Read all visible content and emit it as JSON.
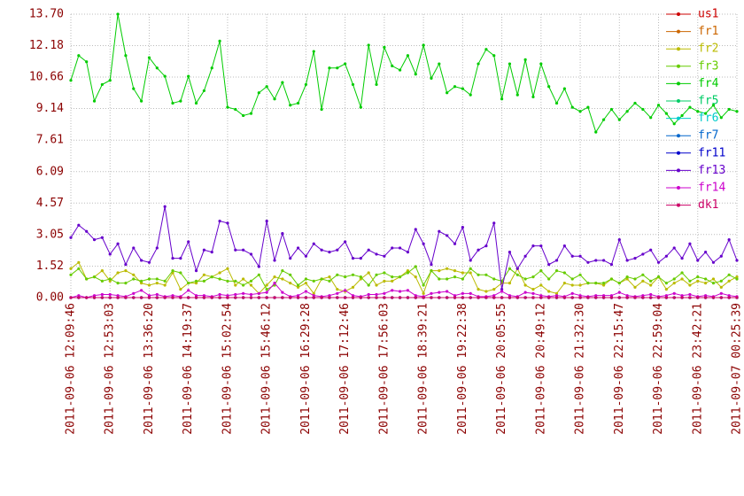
{
  "chart_data": {
    "type": "line",
    "categories": [
      "2011-09-06 12:09:46",
      null,
      null,
      null,
      null,
      "2011-09-06 12:53:03",
      null,
      null,
      null,
      null,
      "2011-09-06 13:36:20",
      null,
      null,
      null,
      null,
      "2011-09-06 14:19:37",
      null,
      null,
      null,
      null,
      "2011-09-06 15:02:54",
      null,
      null,
      null,
      null,
      "2011-09-06 15:46:12",
      null,
      null,
      null,
      null,
      "2011-09-06 16:29:28",
      null,
      null,
      null,
      null,
      "2011-09-06 17:12:46",
      null,
      null,
      null,
      null,
      "2011-09-06 17:56:03",
      null,
      null,
      null,
      null,
      "2011-09-06 18:39:21",
      null,
      null,
      null,
      null,
      "2011-09-06 19:22:38",
      null,
      null,
      null,
      null,
      "2011-09-06 20:05:55",
      null,
      null,
      null,
      null,
      "2011-09-06 20:49:12",
      null,
      null,
      null,
      null,
      "2011-09-06 21:32:30",
      null,
      null,
      null,
      null,
      "2011-09-06 22:15:47",
      null,
      null,
      null,
      null,
      "2011-09-06 22:59:04",
      null,
      null,
      null,
      null,
      "2011-09-06 23:42:21",
      null,
      null,
      null,
      null,
      "2011-09-07 00:25:39"
    ],
    "ylim": [
      0,
      13.7
    ],
    "yticks": [
      {
        "value": 0,
        "label": "0.00"
      },
      1.52,
      3.05,
      4.57,
      6.09,
      7.61,
      9.14,
      10.66,
      12.18,
      {
        "value": 13.7,
        "label": "13.70"
      }
    ],
    "grid": true,
    "legend": "right",
    "series": [
      {
        "name": "us1",
        "color": "#cc0000",
        "values": [
          0,
          0,
          0,
          0,
          0,
          0,
          0,
          0,
          0,
          0,
          0,
          0,
          0,
          0,
          0,
          0,
          0,
          0,
          0,
          0,
          0,
          0,
          0,
          0,
          0,
          0,
          0,
          0,
          0,
          0,
          0,
          0,
          0,
          0,
          0,
          0,
          0,
          0,
          0,
          0,
          0,
          0,
          0,
          0,
          0,
          0,
          0,
          0,
          0,
          0,
          0,
          0,
          0,
          0,
          0,
          0,
          0,
          0,
          0,
          0,
          0,
          0,
          0,
          0,
          0,
          0,
          0,
          0,
          0,
          0,
          0,
          0,
          0,
          0,
          0,
          0,
          0,
          0,
          0,
          0,
          0,
          0,
          0,
          0,
          0,
          0
        ]
      },
      {
        "name": "fr1",
        "color": "#cc6600",
        "values": [
          0,
          0,
          0,
          0,
          0,
          0,
          0,
          0,
          0,
          0,
          0,
          0,
          0,
          0,
          0,
          0,
          0,
          0,
          0,
          0,
          0,
          0,
          0,
          0,
          0,
          0,
          0,
          0,
          0,
          0,
          0,
          0,
          0,
          0,
          0,
          0,
          0,
          0,
          0,
          0,
          0,
          0,
          0,
          0,
          0,
          0,
          0,
          0,
          0,
          0,
          0,
          0,
          0,
          0,
          0,
          0,
          0,
          0,
          0,
          0,
          0,
          0,
          0,
          0,
          0,
          0,
          0,
          0,
          0,
          0,
          0,
          0,
          0,
          0,
          0,
          0,
          0,
          0,
          0,
          0,
          0,
          0,
          0,
          0,
          0,
          0
        ]
      },
      {
        "name": "fr2",
        "color": "#bbbb00",
        "values": [
          1.4,
          1.7,
          0.9,
          1.0,
          1.3,
          0.8,
          1.2,
          1.3,
          1.1,
          0.7,
          0.6,
          0.7,
          0.6,
          1.2,
          0.4,
          0.7,
          0.7,
          1.1,
          1.0,
          1.2,
          1.4,
          0.6,
          0.9,
          0.6,
          0.2,
          0.6,
          1.0,
          0.9,
          0.7,
          0.5,
          0.7,
          0.2,
          0.9,
          1.0,
          0.4,
          0.3,
          0.5,
          0.9,
          1.2,
          0.6,
          0.8,
          0.8,
          1.0,
          1.3,
          1.0,
          0.2,
          1.3,
          1.3,
          1.4,
          1.3,
          1.2,
          1.2,
          0.4,
          0.3,
          0.4,
          0.7,
          0.7,
          1.4,
          0.6,
          0.4,
          0.6,
          0.3,
          0.2,
          0.7,
          0.6,
          0.6,
          0.7,
          0.7,
          0.6,
          0.9,
          0.7,
          0.9,
          0.5,
          0.8,
          0.6,
          1.0,
          0.4,
          0.7,
          0.9,
          0.6,
          0.8,
          0.7,
          0.9,
          0.5,
          0.8,
          1.0
        ]
      },
      {
        "name": "fr3",
        "color": "#66cc00",
        "values": [
          1.1,
          1.4,
          0.9,
          1.0,
          0.8,
          0.9,
          0.7,
          0.7,
          0.9,
          0.8,
          0.9,
          0.9,
          0.8,
          1.3,
          1.2,
          0.7,
          0.8,
          0.8,
          1.0,
          0.9,
          0.8,
          0.8,
          0.6,
          0.8,
          1.1,
          0.4,
          0.6,
          1.3,
          1.1,
          0.6,
          0.9,
          0.8,
          0.9,
          0.8,
          1.1,
          1.0,
          1.1,
          1.0,
          0.6,
          1.1,
          1.2,
          1.0,
          1.0,
          1.2,
          1.5,
          0.6,
          1.3,
          0.9,
          0.9,
          1.0,
          0.9,
          1.4,
          1.1,
          1.1,
          0.9,
          0.8,
          1.4,
          1.1,
          0.9,
          1.0,
          1.3,
          0.9,
          1.3,
          1.2,
          0.9,
          1.1,
          0.7,
          0.7,
          0.7,
          0.9,
          0.7,
          1.0,
          0.9,
          1.1,
          0.8,
          1.0,
          0.7,
          0.9,
          1.2,
          0.8,
          1.0,
          0.9,
          0.7,
          0.8,
          1.1,
          0.9
        ]
      },
      {
        "name": "fr4",
        "color": "#00cc00",
        "values": [
          10.5,
          11.7,
          11.4,
          9.5,
          10.3,
          10.5,
          13.7,
          11.7,
          10.1,
          9.5,
          11.6,
          11.1,
          10.7,
          9.4,
          9.5,
          10.7,
          9.4,
          10.0,
          11.1,
          12.4,
          9.2,
          9.1,
          8.8,
          8.9,
          9.9,
          10.2,
          9.6,
          10.4,
          9.3,
          9.4,
          10.3,
          11.9,
          9.1,
          11.1,
          11.1,
          11.3,
          10.3,
          9.2,
          12.2,
          10.3,
          12.1,
          11.2,
          11.0,
          11.7,
          10.8,
          12.2,
          10.6,
          11.3,
          9.9,
          10.2,
          10.1,
          9.8,
          11.3,
          12.0,
          11.7,
          9.6,
          11.3,
          9.8,
          11.5,
          9.7,
          11.3,
          10.2,
          9.4,
          10.1,
          9.2,
          9.0,
          9.2,
          8.0,
          8.6,
          9.1,
          8.6,
          9.0,
          9.4,
          9.1,
          8.7,
          9.3,
          8.9,
          8.4,
          8.8,
          9.2,
          9.0,
          8.9,
          9.3,
          8.7,
          9.1,
          9.0
        ]
      },
      {
        "name": "fr5",
        "color": "#00cc66",
        "values": [
          0,
          0,
          0,
          0,
          0,
          0,
          0,
          0,
          0,
          0,
          0,
          0,
          0,
          0,
          0,
          0,
          0,
          0,
          0,
          0,
          0,
          0,
          0,
          0,
          0,
          0,
          0,
          0,
          0,
          0,
          0,
          0,
          0,
          0,
          0,
          0,
          0,
          0,
          0,
          0,
          0,
          0,
          0,
          0,
          0,
          0,
          0,
          0,
          0,
          0,
          0,
          0,
          0,
          0,
          0,
          0,
          0,
          0,
          0,
          0,
          0,
          0,
          0,
          0,
          0,
          0,
          0,
          0,
          0,
          0,
          0,
          0,
          0,
          0,
          0,
          0,
          0,
          0,
          0,
          0,
          0,
          0,
          0,
          0,
          0,
          0
        ]
      },
      {
        "name": "fr6",
        "color": "#00cccc",
        "values": [
          0,
          0,
          0,
          0,
          0,
          0,
          0,
          0,
          0,
          0,
          0,
          0,
          0,
          0,
          0,
          0,
          0,
          0,
          0,
          0,
          0,
          0,
          0,
          0,
          0,
          0,
          0,
          0,
          0,
          0,
          0,
          0,
          0,
          0,
          0,
          0,
          0,
          0,
          0,
          0,
          0,
          0,
          0,
          0,
          0,
          0,
          0,
          0,
          0,
          0,
          0,
          0,
          0,
          0,
          0,
          0,
          0,
          0,
          0,
          0,
          0,
          0,
          0,
          0,
          0,
          0,
          0,
          0,
          0,
          0,
          0,
          0,
          0,
          0,
          0,
          0,
          0,
          0,
          0,
          0,
          0,
          0,
          0,
          0,
          0,
          0
        ]
      },
      {
        "name": "fr7",
        "color": "#0066cc",
        "values": [
          0,
          0,
          0,
          0,
          0,
          0,
          0,
          0,
          0,
          0,
          0,
          0,
          0,
          0,
          0,
          0,
          0,
          0,
          0,
          0,
          0,
          0,
          0,
          0,
          0,
          0,
          0,
          0,
          0,
          0,
          0,
          0,
          0,
          0,
          0,
          0,
          0,
          0,
          0,
          0,
          0,
          0,
          0,
          0,
          0,
          0,
          0,
          0,
          0,
          0,
          0,
          0,
          0,
          0,
          0,
          0,
          0,
          0,
          0,
          0,
          0,
          0,
          0,
          0,
          0,
          0,
          0,
          0,
          0,
          0,
          0,
          0,
          0,
          0,
          0,
          0,
          0,
          0,
          0,
          0,
          0,
          0,
          0,
          0,
          0,
          0
        ]
      },
      {
        "name": "fr11",
        "color": "#0000cc",
        "values": [
          0,
          0,
          0,
          0,
          0,
          0,
          0,
          0,
          0,
          0,
          0,
          0,
          0,
          0,
          0,
          0,
          0,
          0,
          0,
          0,
          0,
          0,
          0,
          0,
          0,
          0,
          0,
          0,
          0,
          0,
          0,
          0,
          0,
          0,
          0,
          0,
          0,
          0,
          0,
          0,
          0,
          0,
          0,
          0,
          0,
          0,
          0,
          0,
          0,
          0,
          0,
          0,
          0,
          0,
          0,
          0,
          0,
          0,
          0,
          0,
          0,
          0,
          0,
          0,
          0,
          0,
          0,
          0,
          0,
          0,
          0,
          0,
          0,
          0,
          0,
          0,
          0,
          0,
          0,
          0,
          0,
          0,
          0,
          0,
          0,
          0
        ]
      },
      {
        "name": "fr13",
        "color": "#6600cc",
        "values": [
          2.9,
          3.5,
          3.2,
          2.8,
          2.9,
          2.1,
          2.6,
          1.6,
          2.4,
          1.8,
          1.7,
          2.4,
          4.4,
          1.9,
          1.9,
          2.7,
          1.3,
          2.3,
          2.2,
          3.7,
          3.6,
          2.3,
          2.3,
          2.1,
          1.5,
          3.7,
          1.8,
          3.1,
          1.9,
          2.4,
          2.0,
          2.6,
          2.3,
          2.2,
          2.3,
          2.7,
          1.9,
          1.9,
          2.3,
          2.1,
          2.0,
          2.4,
          2.4,
          2.2,
          3.3,
          2.6,
          1.6,
          3.2,
          3.0,
          2.6,
          3.4,
          1.8,
          2.3,
          2.5,
          3.6,
          0.4,
          2.2,
          1.4,
          2.0,
          2.5,
          2.5,
          1.6,
          1.8,
          2.5,
          2.0,
          2.0,
          1.7,
          1.8,
          1.8,
          1.6,
          2.8,
          1.8,
          1.9,
          2.1,
          2.3,
          1.7,
          2.0,
          2.4,
          1.9,
          2.6,
          1.8,
          2.2,
          1.7,
          2.0,
          2.8,
          1.8
        ]
      },
      {
        "name": "fr14",
        "color": "#cc00cc",
        "values": [
          0.0,
          0.1,
          0.0,
          0.1,
          0.15,
          0.15,
          0.1,
          0.05,
          0.2,
          0.35,
          0.1,
          0.15,
          0.05,
          0.1,
          0.05,
          0.35,
          0.1,
          0.1,
          0.05,
          0.15,
          0.1,
          0.15,
          0.2,
          0.15,
          0.2,
          0.25,
          0.7,
          0.25,
          0.05,
          0.1,
          0.3,
          0.1,
          0.05,
          0.1,
          0.2,
          0.35,
          0.1,
          0.05,
          0.15,
          0.15,
          0.2,
          0.35,
          0.3,
          0.35,
          0.1,
          0.05,
          0.2,
          0.25,
          0.3,
          0.1,
          0.2,
          0.2,
          0.05,
          0.05,
          0.1,
          0.3,
          0.1,
          0.05,
          0.25,
          0.2,
          0.1,
          0.05,
          0.1,
          0.05,
          0.2,
          0.1,
          0.05,
          0.1,
          0.1,
          0.1,
          0.25,
          0.1,
          0.05,
          0.1,
          0.15,
          0.05,
          0.1,
          0.2,
          0.1,
          0.15,
          0.05,
          0.1,
          0.05,
          0.2,
          0.1,
          0.05
        ]
      },
      {
        "name": "dk1",
        "color": "#cc0066",
        "values": [
          0,
          0,
          0,
          0,
          0,
          0,
          0,
          0,
          0,
          0,
          0,
          0,
          0,
          0,
          0,
          0,
          0,
          0,
          0,
          0,
          0,
          0,
          0,
          0,
          0,
          0,
          0,
          0,
          0,
          0,
          0,
          0,
          0,
          0,
          0,
          0,
          0,
          0,
          0,
          0,
          0,
          0,
          0,
          0,
          0,
          0,
          0,
          0,
          0,
          0,
          0,
          0,
          0,
          0,
          0,
          0,
          0,
          0,
          0,
          0,
          0,
          0,
          0,
          0,
          0,
          0,
          0,
          0,
          0,
          0,
          0,
          0,
          0,
          0,
          0,
          0,
          0,
          0,
          0,
          0,
          0,
          0,
          0,
          0,
          0,
          0
        ]
      }
    ]
  }
}
